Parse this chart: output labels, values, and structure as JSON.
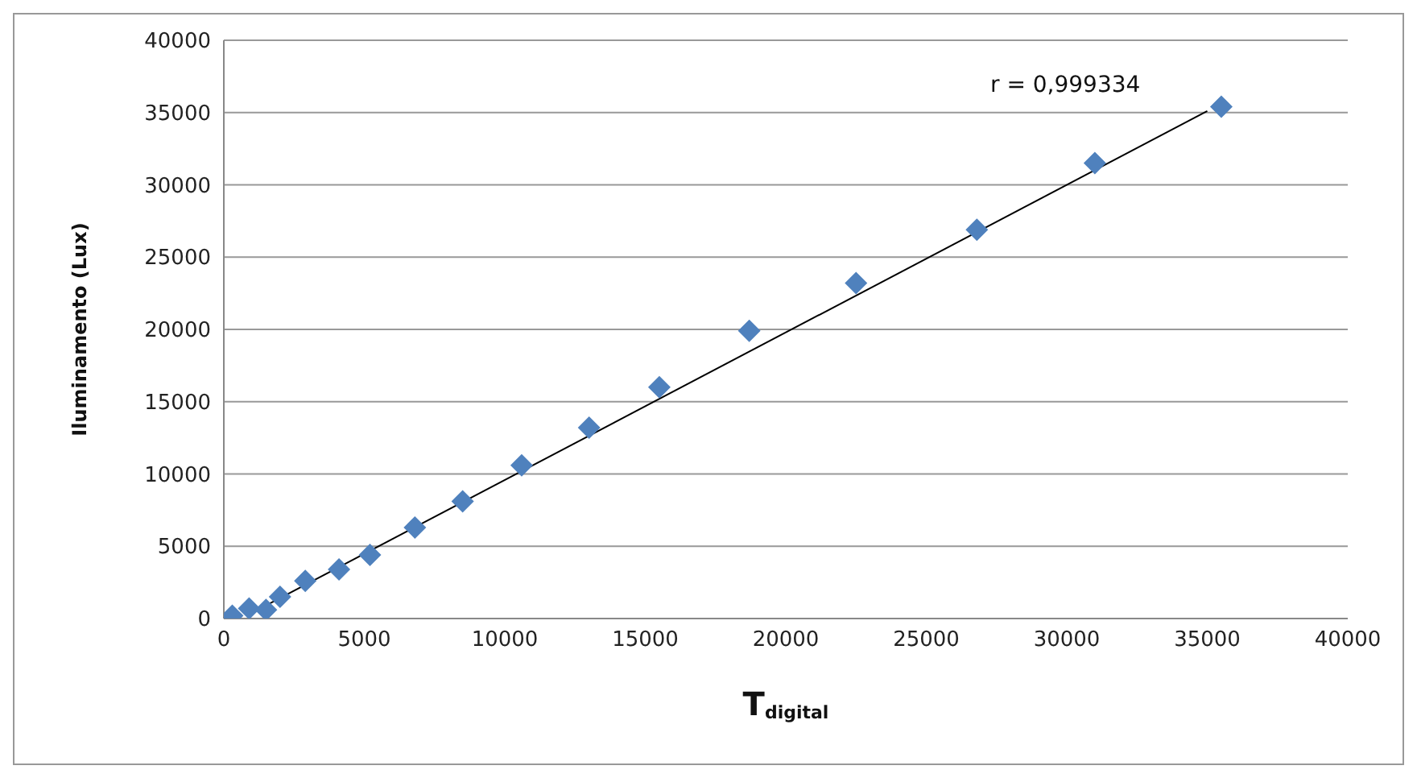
{
  "chart_data": {
    "type": "scatter",
    "xlabel": "T$_{digital}$",
    "ylabel": "Iluminamento (Lux)",
    "annotations": [
      "r = 0,999334"
    ],
    "xlim": [
      0,
      40000
    ],
    "xticks": [
      0,
      5000,
      10000,
      15000,
      20000,
      25000,
      30000,
      35000,
      40000
    ],
    "ylim": [
      0,
      40000
    ],
    "yticks": [
      0,
      5000,
      10000,
      15000,
      20000,
      25000,
      30000,
      35000,
      40000
    ],
    "grid": "y",
    "marker": "diamond",
    "series": [
      {
        "color": "#4f81bd",
        "x": [
          300,
          900,
          1500,
          2000,
          2900,
          4100,
          5200,
          6800,
          8500,
          10600,
          13000,
          15500,
          18700,
          22500,
          26800,
          31000,
          35500
        ],
        "values": [
          200,
          700,
          600,
          1500,
          2600,
          3400,
          4400,
          6300,
          8100,
          10600,
          13200,
          16000,
          19900,
          23200,
          26900,
          31500,
          35400
        ]
      },
      {
        "type": "line",
        "color": "#000000",
        "marker": "none",
        "x": [
          1100,
          35000
        ],
        "values": [
          500,
          35100
        ]
      }
    ]
  }
}
